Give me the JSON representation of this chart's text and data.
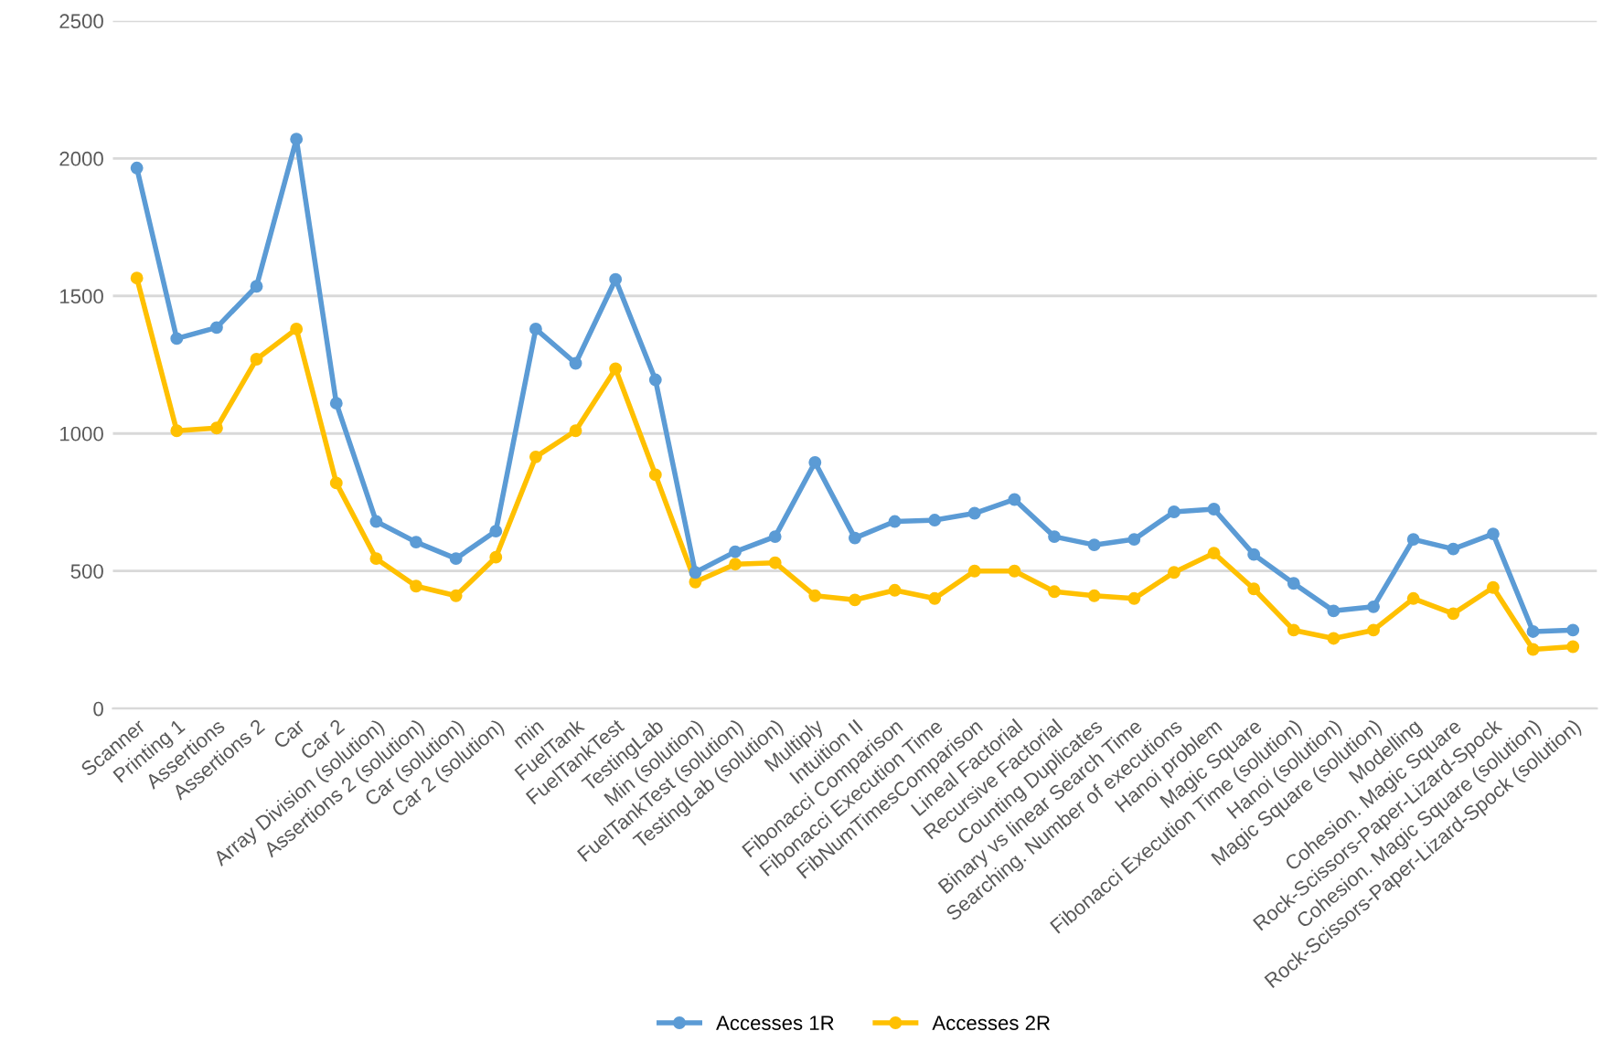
{
  "chart_data": {
    "type": "line",
    "categories": [
      "Scanner",
      "Printing 1",
      "Assertions",
      "Assertions 2",
      "Car",
      "Car 2",
      "Array Division (solution)",
      "Assertions 2 (solution)",
      "Car (solution)",
      "Car 2 (solution)",
      "min",
      "FuelTank",
      "FuelTankTest",
      "TestingLab",
      "Min (solution)",
      "FuelTankTest (solution)",
      "TestingLab (solution)",
      "Multiply",
      "Intuition II",
      "Fibonacci Comparison",
      "Fibonacci Execution Time",
      "FibNumTimesComparison",
      "Lineal Factorial",
      "Recursive Factorial",
      "Counting Duplicates",
      "Binary vs linear Search Time",
      "Searching. Number of executions",
      "Hanoi problem",
      "Magic Square",
      "Fibonacci Execution Time (solution)",
      "Hanoi (solution)",
      "Magic Square (solution)",
      "Modelling",
      "Cohesion. Magic Square",
      "Rock-Scissors-Paper-Lizard-Spock",
      "Cohesion. Magic Square (solution)",
      "Rock-Scissors-Paper-Lizard-Spock (solution)"
    ],
    "series": [
      {
        "name": "Accesses 1R",
        "color": "#5b9bd5",
        "values": [
          1965,
          1345,
          1385,
          1535,
          2070,
          1110,
          680,
          605,
          545,
          645,
          1380,
          1255,
          1560,
          1195,
          495,
          570,
          625,
          895,
          620,
          680,
          685,
          710,
          760,
          625,
          595,
          615,
          715,
          725,
          560,
          455,
          355,
          370,
          615,
          580,
          635,
          280,
          285
        ]
      },
      {
        "name": "Accesses 2R",
        "color": "#ffc000",
        "values": [
          1565,
          1010,
          1020,
          1270,
          1380,
          820,
          545,
          445,
          410,
          550,
          915,
          1010,
          1235,
          850,
          460,
          525,
          530,
          410,
          395,
          430,
          400,
          500,
          500,
          425,
          410,
          400,
          495,
          565,
          435,
          285,
          255,
          285,
          400,
          345,
          440,
          215,
          225
        ]
      }
    ],
    "ylim": [
      0,
      2500
    ],
    "yticks": [
      0,
      500,
      1000,
      1500,
      2000,
      2500
    ],
    "grid": "y",
    "legend": "bottom",
    "marker": "circle",
    "line_style": "solid"
  }
}
